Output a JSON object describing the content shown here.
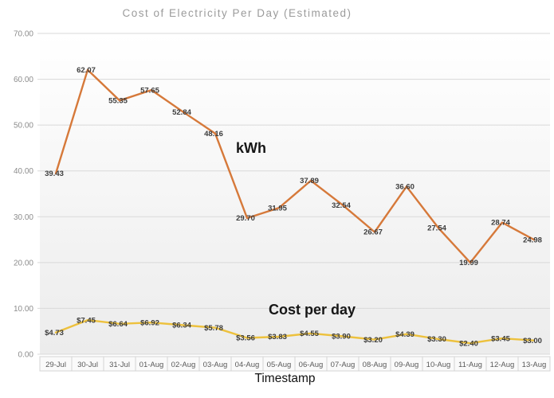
{
  "title": "Cost of Electricity Per Day (Estimated)",
  "annotations": {
    "series_kwh": "kWh",
    "series_cost": "Cost per day"
  },
  "x_axis_title": "Timestamp",
  "y_axis": {
    "ticks": [
      "70.00",
      "60.00",
      "50.00",
      "40.00",
      "30.00",
      "20.00",
      "10.00",
      "0.00"
    ],
    "min": 0,
    "max": 70,
    "step": 10
  },
  "colors": {
    "kwh_line": "#D6793A",
    "cost_line": "#EDC13D",
    "gridline": "#D9D9D9",
    "axis_text": "#8C8C8C",
    "data_label_text": "#3C3C3C",
    "date_text": "#595959",
    "date_border": "#D4D4D4",
    "date_fill": "#FAFAFA",
    "plot_bg_top": "#FFFFFF",
    "plot_bg_bottom": "#ECECEC"
  },
  "chart_data": {
    "type": "line",
    "title": "Cost of Electricity Per Day (Estimated)",
    "xlabel": "Timestamp",
    "ylabel": "",
    "ylim": [
      0,
      70
    ],
    "grid": true,
    "legend_position": "none (inline text annotations: kWh, Cost per day)",
    "data_label_position": "center",
    "categories": [
      "29-Jul",
      "30-Jul",
      "31-Jul",
      "01-Aug",
      "02-Aug",
      "03-Aug",
      "04-Aug",
      "05-Aug",
      "06-Aug",
      "07-Aug",
      "08-Aug",
      "09-Aug",
      "10-Aug",
      "11-Aug",
      "12-Aug",
      "13-Aug"
    ],
    "series": [
      {
        "name": "kWh",
        "color": "#D6793A",
        "values": [
          39.43,
          62.07,
          55.35,
          57.65,
          52.84,
          48.16,
          29.7,
          31.95,
          37.89,
          32.54,
          26.67,
          36.6,
          27.54,
          19.99,
          28.74,
          24.98
        ],
        "labels": [
          "39.43",
          "62.07",
          "55.35",
          "57.65",
          "52.84",
          "48.16",
          "29.70",
          "31.95",
          "37.89",
          "32.54",
          "26.67",
          "36.60",
          "27.54",
          "19.99",
          "28.74",
          "24.98"
        ]
      },
      {
        "name": "Cost per day",
        "color": "#EDC13D",
        "values": [
          4.73,
          7.45,
          6.64,
          6.92,
          6.34,
          5.78,
          3.56,
          3.83,
          4.55,
          3.9,
          3.2,
          4.39,
          3.3,
          2.4,
          3.45,
          3.0
        ],
        "labels": [
          "$4.73",
          "$7.45",
          "$6.64",
          "$6.92",
          "$6.34",
          "$5.78",
          "$3.56",
          "$3.83",
          "$4.55",
          "$3.90",
          "$3.20",
          "$4.39",
          "$3.30",
          "$2.40",
          "$3.45",
          "$3.00"
        ]
      }
    ]
  }
}
